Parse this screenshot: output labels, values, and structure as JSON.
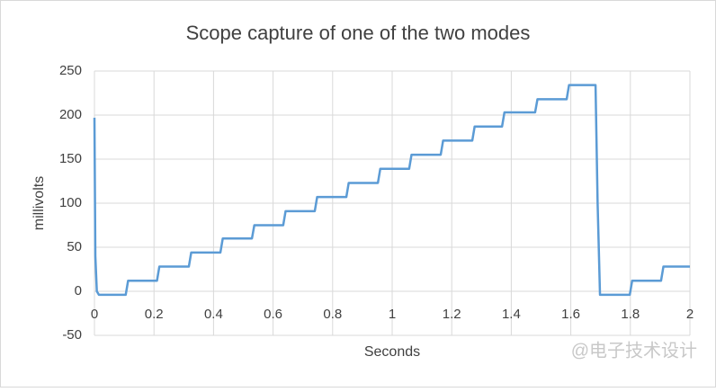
{
  "chart_data": {
    "type": "line",
    "title": "Scope capture of one of the two modes",
    "xlabel": "Seconds",
    "ylabel": "millivolts",
    "watermark": "@电子技术设计",
    "x": [
      0,
      0.003,
      0.008,
      0.015,
      0.105,
      0.113,
      0.21,
      0.218,
      0.317,
      0.325,
      0.423,
      0.431,
      0.529,
      0.537,
      0.634,
      0.642,
      0.74,
      0.748,
      0.846,
      0.854,
      0.952,
      0.96,
      1.057,
      1.065,
      1.163,
      1.171,
      1.269,
      1.277,
      1.369,
      1.377,
      1.48,
      1.488,
      1.586,
      1.594,
      1.683,
      1.69,
      1.698,
      1.798,
      1.806,
      1.903,
      1.911,
      2
    ],
    "series": [
      {
        "name": "millivolts",
        "color": "#5b9bd5",
        "values": [
          197,
          40,
          0,
          -4,
          -4,
          12,
          12,
          28,
          28,
          44,
          44,
          60,
          60,
          75,
          75,
          91,
          91,
          107,
          107,
          123,
          123,
          139,
          139,
          155,
          155,
          171,
          171,
          187,
          187,
          203,
          203,
          218,
          218,
          234,
          234,
          100,
          -4,
          -4,
          12,
          12,
          28,
          28
        ]
      }
    ],
    "xlim": [
      0,
      2
    ],
    "xticks": [
      0,
      0.2,
      0.4,
      0.6,
      0.8,
      1,
      1.2,
      1.4,
      1.6,
      1.8,
      2
    ],
    "ylim": [
      -50,
      250
    ],
    "yticks": [
      -50,
      0,
      50,
      100,
      150,
      200,
      250
    ],
    "grid": true
  }
}
